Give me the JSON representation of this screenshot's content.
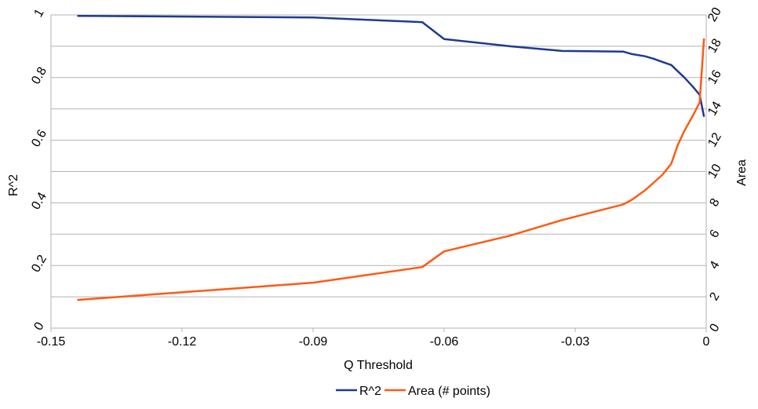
{
  "chart_data": {
    "type": "line",
    "title": "",
    "xlabel": "Q Threshold",
    "ylabel_left": "R^2",
    "ylabel_right": "Area",
    "xlim": [
      -0.15,
      0
    ],
    "ylim_left": [
      0,
      1
    ],
    "ylim_right": [
      0,
      20
    ],
    "grid": true,
    "legend_position": "bottom",
    "x_ticks": [
      -0.15,
      -0.12,
      -0.09,
      -0.06,
      -0.03,
      0
    ],
    "x_tick_labels": [
      "-0.15",
      "-0.12",
      "-0.09",
      "-0.06",
      "-0.03",
      "0"
    ],
    "y_left_ticks": [
      0,
      0.2,
      0.4,
      0.6,
      0.8,
      1
    ],
    "y_left_tick_labels": [
      "0",
      "0.2",
      "0.4",
      "0.6",
      "0.8",
      "1"
    ],
    "y_right_ticks": [
      0,
      2,
      4,
      6,
      8,
      10,
      12,
      14,
      16,
      18,
      20
    ],
    "y_right_tick_labels": [
      "0",
      "2",
      "4",
      "6",
      "8",
      "10",
      "12",
      "14",
      "16",
      "18",
      "20"
    ],
    "series": [
      {
        "name": "R^2",
        "axis": "left",
        "color": "#1f3b8f",
        "x": [
          -0.144,
          -0.09,
          -0.087,
          -0.065,
          -0.06,
          -0.045,
          -0.033,
          -0.019,
          -0.017,
          -0.014,
          -0.012,
          -0.01,
          -0.008,
          -0.0065,
          -0.005,
          -0.003,
          -0.0015,
          -0.0005
        ],
        "y": [
          0.997,
          0.992,
          0.99,
          0.977,
          0.923,
          0.9,
          0.885,
          0.883,
          0.875,
          0.868,
          0.86,
          0.85,
          0.84,
          0.82,
          0.8,
          0.77,
          0.745,
          0.675
        ]
      },
      {
        "name": "Area (# points)",
        "axis": "right",
        "color": "#ff5a12",
        "x": [
          -0.144,
          -0.09,
          -0.065,
          -0.06,
          -0.045,
          -0.033,
          -0.019,
          -0.017,
          -0.014,
          -0.012,
          -0.01,
          -0.008,
          -0.0065,
          -0.005,
          -0.003,
          -0.0015,
          -0.0005
        ],
        "y": [
          1.8,
          2.9,
          3.9,
          4.9,
          5.9,
          6.9,
          7.9,
          8.2,
          8.8,
          9.3,
          9.8,
          10.5,
          11.7,
          12.6,
          13.6,
          14.4,
          18.5
        ]
      }
    ]
  }
}
